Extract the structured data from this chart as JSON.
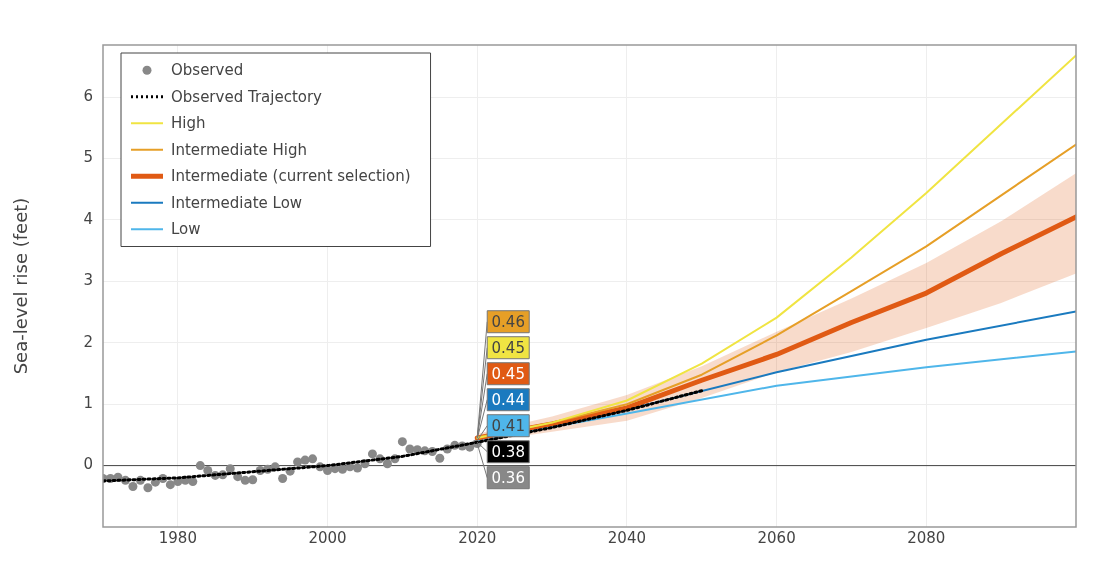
{
  "chart_data": {
    "type": "line",
    "ylabel": "Sea-level rise (feet)",
    "xlim": [
      1970,
      2100
    ],
    "xticks": [
      1980,
      2000,
      2020,
      2040,
      2060,
      2080
    ],
    "ylim": [
      -1,
      6.85
    ],
    "yticks": [
      0,
      1,
      2,
      3,
      4,
      5,
      6
    ],
    "grid": true,
    "legend": "top left",
    "ref_lines": [
      {
        "axis": "y",
        "value": 0,
        "color": "#444444"
      }
    ],
    "series": [
      {
        "name": "Observed",
        "type": "scatter",
        "marker": "circle",
        "color": "#888888",
        "x": [
          1970,
          1971,
          1972,
          1973,
          1974,
          1975,
          1976,
          1977,
          1978,
          1979,
          1980,
          1981,
          1982,
          1983,
          1984,
          1985,
          1986,
          1987,
          1988,
          1989,
          1990,
          1991,
          1992,
          1993,
          1994,
          1995,
          1996,
          1997,
          1998,
          1999,
          2000,
          2001,
          2002,
          2003,
          2004,
          2005,
          2006,
          2007,
          2008,
          2009,
          2010,
          2011,
          2012,
          2013,
          2014,
          2015,
          2016,
          2017,
          2018,
          2019,
          2020
        ],
        "values": [
          -0.21,
          -0.21,
          -0.19,
          -0.24,
          -0.34,
          -0.24,
          -0.36,
          -0.27,
          -0.21,
          -0.31,
          -0.26,
          -0.24,
          -0.26,
          0.0,
          -0.08,
          -0.16,
          -0.15,
          -0.05,
          -0.18,
          -0.24,
          -0.23,
          -0.08,
          -0.06,
          -0.02,
          -0.21,
          -0.09,
          0.06,
          0.09,
          0.11,
          -0.02,
          -0.08,
          -0.05,
          -0.06,
          -0.02,
          -0.04,
          0.03,
          0.19,
          0.11,
          0.03,
          0.11,
          0.39,
          0.27,
          0.26,
          0.24,
          0.23,
          0.12,
          0.27,
          0.33,
          0.32,
          0.3,
          0.36
        ],
        "value_labels": [
          null,
          null,
          null,
          null,
          null,
          null,
          null,
          null,
          null,
          null,
          null,
          null,
          null,
          null,
          null,
          null,
          null,
          null,
          null,
          null,
          null,
          null,
          null,
          null,
          null,
          null,
          null,
          null,
          null,
          null,
          null,
          null,
          null,
          null,
          null,
          null,
          null,
          null,
          null,
          null,
          null,
          null,
          null,
          null,
          null,
          null,
          null,
          null,
          null,
          null,
          "0.36"
        ]
      },
      {
        "name": "Observed Trajectory",
        "type": "line",
        "line_style": "dotted",
        "color": "#000000",
        "x": [
          1970,
          1980,
          1990,
          2000,
          2010,
          2020,
          2030,
          2040,
          2050
        ],
        "values": [
          -0.25,
          -0.2,
          -0.1,
          0.0,
          0.15,
          0.38,
          0.62,
          0.9,
          1.22
        ],
        "value_labels": [
          null,
          null,
          null,
          null,
          null,
          "0.38",
          null,
          null,
          null
        ]
      },
      {
        "name": "High",
        "type": "line",
        "color": "#f0e442",
        "x": [
          2020,
          2030,
          2040,
          2050,
          2060,
          2070,
          2080,
          2100
        ],
        "values": [
          0.45,
          0.7,
          1.06,
          1.66,
          2.41,
          3.39,
          4.44,
          6.68
        ],
        "value_labels": [
          "0.45",
          null,
          null,
          null,
          null,
          null,
          null,
          null
        ]
      },
      {
        "name": "Intermediate High",
        "type": "line",
        "color": "#e69f27",
        "x": [
          2020,
          2030,
          2040,
          2050,
          2060,
          2070,
          2080,
          2100
        ],
        "values": [
          0.46,
          0.7,
          1.0,
          1.48,
          2.12,
          2.84,
          3.57,
          5.23
        ],
        "value_labels": [
          "0.46",
          null,
          null,
          null,
          null,
          null,
          null,
          null
        ]
      },
      {
        "name": "Intermediate (current selection)",
        "type": "line",
        "color": "#e05a14",
        "x": [
          2020,
          2030,
          2040,
          2050,
          2060,
          2070,
          2080,
          2090,
          2100
        ],
        "values": [
          0.45,
          0.68,
          0.94,
          1.39,
          1.81,
          2.33,
          2.81,
          3.45,
          4.05
        ],
        "lower": [
          0.38,
          0.55,
          0.73,
          1.1,
          1.52,
          1.85,
          2.24,
          2.65,
          3.13
        ],
        "upper": [
          0.52,
          0.8,
          1.15,
          1.62,
          2.18,
          2.72,
          3.3,
          3.98,
          4.76
        ],
        "value_labels": [
          "0.45",
          null,
          null,
          null,
          null,
          null,
          null,
          null,
          null
        ]
      },
      {
        "name": "Intermediate Low",
        "type": "line",
        "color": "#1a7abf",
        "x": [
          2020,
          2040,
          2060,
          2080,
          2100
        ],
        "values": [
          0.44,
          0.91,
          1.52,
          2.05,
          2.51
        ],
        "value_labels": [
          "0.44",
          null,
          null,
          null,
          null
        ]
      },
      {
        "name": "Low",
        "type": "line",
        "color": "#4fb6ea",
        "x": [
          2020,
          2040,
          2060,
          2080,
          2100
        ],
        "values": [
          0.41,
          0.85,
          1.3,
          1.6,
          1.86
        ],
        "value_labels": [
          "0.41",
          null,
          null,
          null,
          null
        ]
      }
    ]
  }
}
